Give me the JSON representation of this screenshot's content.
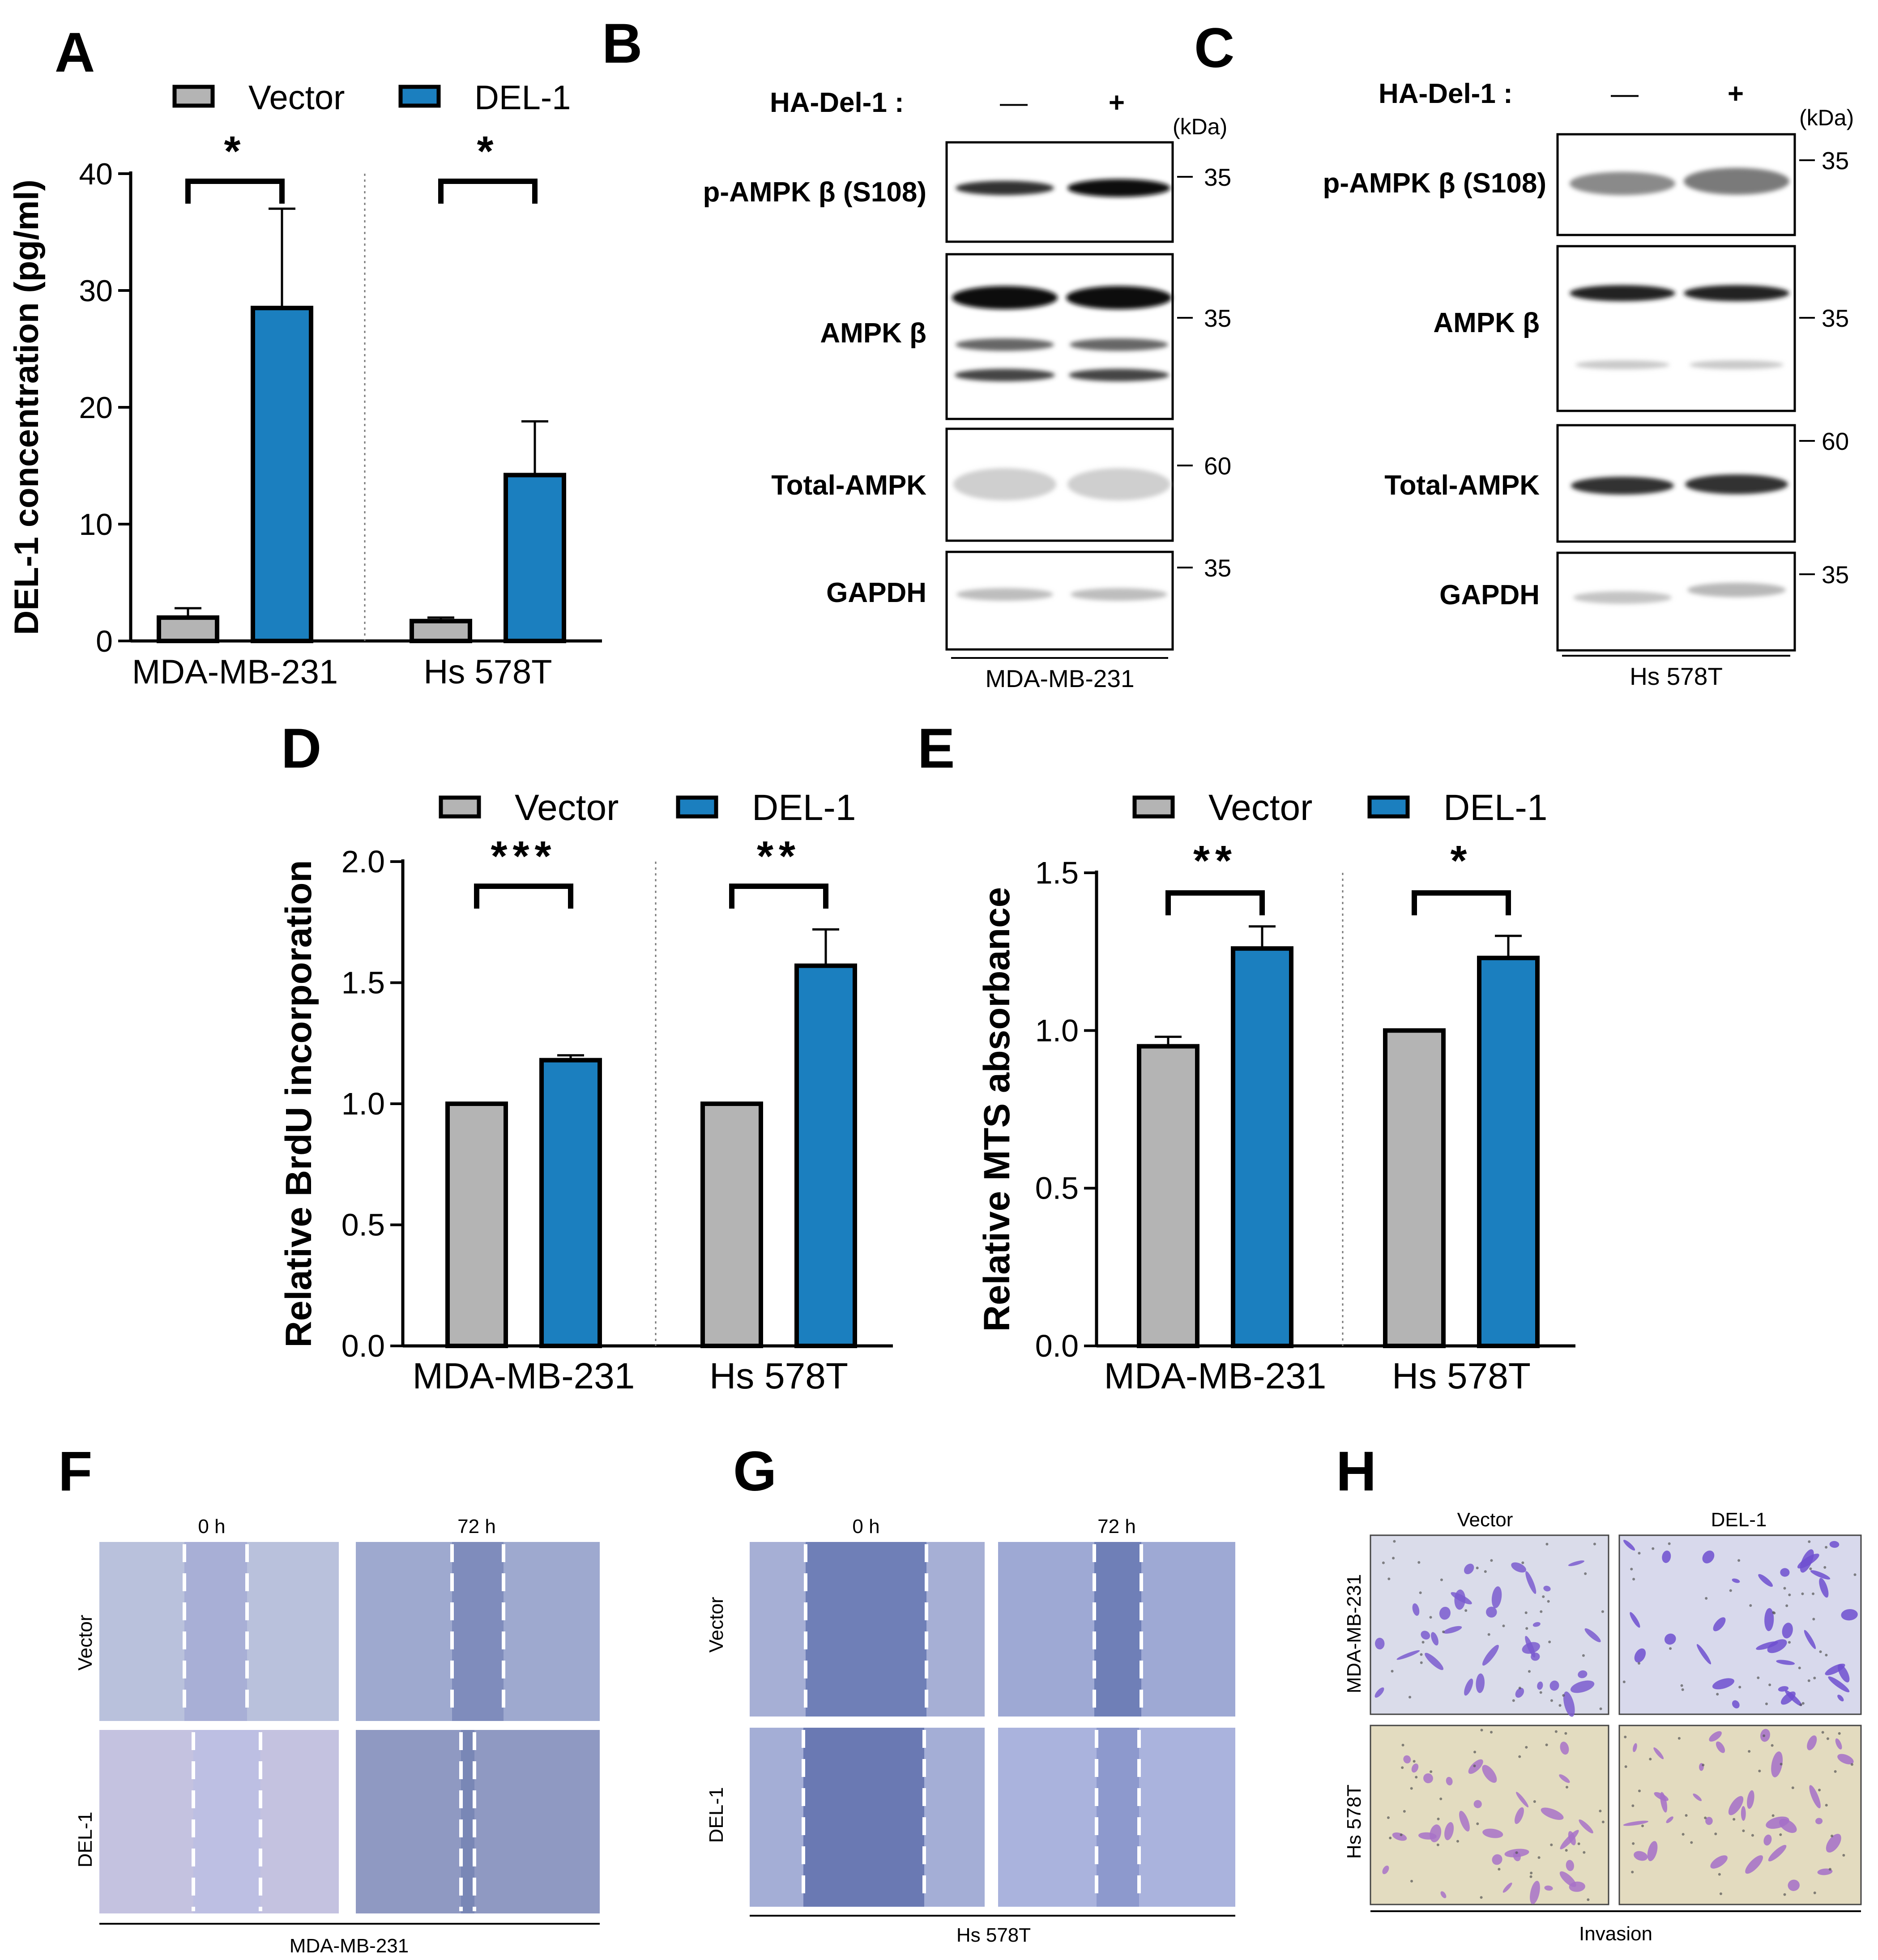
{
  "colors": {
    "vector": "#b4b4b4",
    "del1": "#1b7fbf",
    "axis": "#000000"
  },
  "panel_letters": [
    "A",
    "B",
    "C",
    "D",
    "E",
    "F",
    "G",
    "H"
  ],
  "blots": {
    "B": {
      "header": "HA-Del-1 :",
      "lanes": [
        "—",
        "+"
      ],
      "kda": "(kDa)",
      "cell": "MDA-MB-231",
      "rows": [
        {
          "label": "p-AMPK β (S108)",
          "mw": "35"
        },
        {
          "label": "AMPK β",
          "mw": "35"
        },
        {
          "label": "Total-AMPK",
          "mw": "60"
        },
        {
          "label": "GAPDH",
          "mw": "35"
        }
      ]
    },
    "C": {
      "header": "HA-Del-1 :",
      "lanes": [
        "—",
        "+"
      ],
      "kda": "(kDa)",
      "cell": "Hs 578T",
      "rows": [
        {
          "label": "p-AMPK β (S108)",
          "mw": "35"
        },
        {
          "label": "AMPK β",
          "mw": "35"
        },
        {
          "label": "Total-AMPK",
          "mw": "60"
        },
        {
          "label": "GAPDH",
          "mw": "35"
        }
      ]
    }
  },
  "micro": {
    "F": {
      "cols": [
        "0 h",
        "72 h"
      ],
      "rows": [
        "Vector",
        "DEL-1"
      ],
      "footer": "MDA-MB-231"
    },
    "G": {
      "cols": [
        "0 h",
        "72 h"
      ],
      "rows": [
        "Vector",
        "DEL-1"
      ],
      "footer": "Hs 578T"
    },
    "H": {
      "cols": [
        "Vector",
        "DEL-1"
      ],
      "rows": [
        "MDA-MB-231",
        "Hs 578T"
      ],
      "footer": "Invasion"
    }
  },
  "chart_data": [
    {
      "panel": "A",
      "type": "bar",
      "categories": [
        "MDA-MB-231",
        "Hs 578T"
      ],
      "series": [
        {
          "name": "Vector",
          "values": [
            2.0,
            1.7
          ],
          "errors": [
            0.8,
            0.3
          ]
        },
        {
          "name": "DEL-1",
          "values": [
            28.5,
            14.2
          ],
          "errors": [
            8.5,
            4.6
          ]
        }
      ],
      "ylabel": "DEL-1 concentration (pg/ml)",
      "ylim": [
        0,
        40
      ],
      "yticks": [
        "0",
        "10",
        "20",
        "30",
        "40"
      ],
      "significance": [
        "*",
        "*"
      ],
      "legend": "top"
    },
    {
      "panel": "D",
      "type": "bar",
      "categories": [
        "MDA-MB-231",
        "Hs 578T"
      ],
      "series": [
        {
          "name": "Vector",
          "values": [
            1.0,
            1.0
          ],
          "errors": [
            0,
            0
          ]
        },
        {
          "name": "DEL-1",
          "values": [
            1.18,
            1.57
          ],
          "errors": [
            0.02,
            0.15
          ]
        }
      ],
      "ylabel": "Relative BrdU incorporation",
      "ylim": [
        0,
        2.0
      ],
      "yticks": [
        "0.0",
        "0.5",
        "1.0",
        "1.5",
        "2.0"
      ],
      "significance": [
        "***",
        "**"
      ],
      "legend": "top"
    },
    {
      "panel": "E",
      "type": "bar",
      "categories": [
        "MDA-MB-231",
        "Hs 578T"
      ],
      "series": [
        {
          "name": "Vector",
          "values": [
            0.95,
            1.0
          ],
          "errors": [
            0.03,
            0
          ]
        },
        {
          "name": "DEL-1",
          "values": [
            1.26,
            1.23
          ],
          "errors": [
            0.07,
            0.07
          ]
        }
      ],
      "ylabel": "Relative MTS absorbance",
      "ylim": [
        0,
        1.5
      ],
      "yticks": [
        "0.0",
        "0.5",
        "1.0",
        "1.5"
      ],
      "significance": [
        "**",
        "*"
      ],
      "legend": "top"
    }
  ]
}
